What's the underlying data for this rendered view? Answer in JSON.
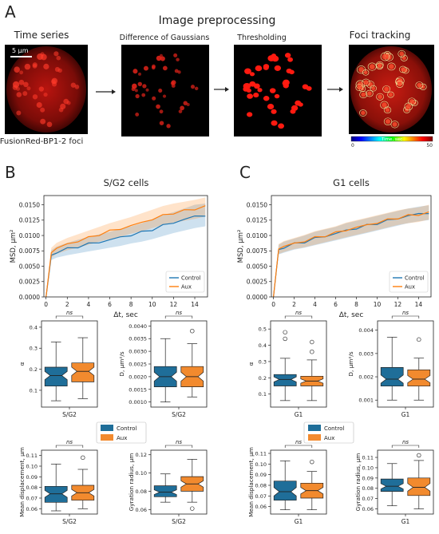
{
  "panel_labels": {
    "a": "A",
    "b": "B",
    "c": "C"
  },
  "preprocessing": {
    "title": "Image preprocessing",
    "steps": [
      "Time series",
      "Difference of Gaussians",
      "Thresholding",
      "Foci tracking"
    ],
    "scale_bar": "5 μm",
    "caption": "FusionRed-BP1-2 foci",
    "colorbar": {
      "label": "Time, sec",
      "min": "0",
      "max": "50"
    }
  },
  "colors": {
    "control": "#1f77b4",
    "aux": "#ff7f0e",
    "box_control": "#1f6e99",
    "box_aux": "#f28a2e",
    "img_red": "#e0201a"
  },
  "legend": {
    "control": "Control",
    "aux": "Aux"
  },
  "ns_label": "ns",
  "chart_data": [
    {
      "id": "msd_sg2",
      "type": "line",
      "title": "S/G2 cells",
      "xlabel": "Δt, sec",
      "ylabel": "MSD, μm²",
      "xlim": [
        -0.2,
        15.2
      ],
      "ylim": [
        0,
        0.0165
      ],
      "xticks": [
        "0",
        "2",
        "4",
        "6",
        "8",
        "10",
        "12",
        "14"
      ],
      "yticks": [
        "0.0000",
        "0.0025",
        "0.0050",
        "0.0075",
        "0.0100",
        "0.0125",
        "0.0150"
      ],
      "legend_position": "lower-right",
      "x": [
        0,
        0.5,
        1,
        2,
        3,
        4,
        5,
        6,
        7,
        8,
        9,
        10,
        11,
        12,
        13,
        14,
        15
      ],
      "series": [
        {
          "name": "Control",
          "values": [
            0,
            0.0068,
            0.0073,
            0.0078,
            0.0082,
            0.0086,
            0.0089,
            0.0093,
            0.0097,
            0.0101,
            0.0105,
            0.011,
            0.0116,
            0.0121,
            0.0126,
            0.0131,
            0.0133
          ],
          "lower": [
            0,
            0.006,
            0.0064,
            0.0068,
            0.0071,
            0.0074,
            0.0077,
            0.008,
            0.0083,
            0.0087,
            0.009,
            0.0094,
            0.0099,
            0.0104,
            0.0108,
            0.0112,
            0.0115
          ],
          "upper": [
            0,
            0.0076,
            0.0082,
            0.0088,
            0.0093,
            0.0098,
            0.0102,
            0.0106,
            0.0111,
            0.0115,
            0.012,
            0.0126,
            0.0133,
            0.0138,
            0.0144,
            0.015,
            0.0152
          ]
        },
        {
          "name": "Aux",
          "values": [
            0,
            0.0072,
            0.0079,
            0.0086,
            0.0091,
            0.0096,
            0.0102,
            0.0107,
            0.0111,
            0.0116,
            0.0121,
            0.0127,
            0.0132,
            0.0137,
            0.014,
            0.0143,
            0.0148
          ],
          "lower": [
            0,
            0.0064,
            0.007,
            0.0076,
            0.008,
            0.0085,
            0.009,
            0.0094,
            0.0098,
            0.0103,
            0.0107,
            0.0112,
            0.0117,
            0.0121,
            0.0124,
            0.0127,
            0.0131
          ],
          "upper": [
            0,
            0.008,
            0.0088,
            0.0096,
            0.0102,
            0.0108,
            0.0114,
            0.012,
            0.0125,
            0.013,
            0.0136,
            0.0142,
            0.0148,
            0.0152,
            0.0155,
            0.0158,
            0.0162
          ]
        }
      ]
    },
    {
      "id": "msd_g1",
      "type": "line",
      "title": "G1 cells",
      "xlabel": "Δt, sec",
      "ylabel": "MSD, μm²",
      "xlim": [
        -0.2,
        15.2
      ],
      "ylim": [
        0,
        0.0165
      ],
      "xticks": [
        "0",
        "2",
        "4",
        "6",
        "8",
        "10",
        "12",
        "14"
      ],
      "yticks": [
        "0.0000",
        "0.0025",
        "0.0050",
        "0.0075",
        "0.0100",
        "0.0125",
        "0.0150"
      ],
      "legend_position": "lower-right",
      "x": [
        0,
        0.5,
        1,
        2,
        3,
        4,
        5,
        6,
        7,
        8,
        9,
        10,
        11,
        12,
        13,
        14,
        15
      ],
      "series": [
        {
          "name": "Control",
          "values": [
            0,
            0.0077,
            0.0081,
            0.0086,
            0.009,
            0.0095,
            0.0099,
            0.0103,
            0.0108,
            0.0112,
            0.0116,
            0.012,
            0.0124,
            0.0128,
            0.0132,
            0.0135,
            0.0137
          ],
          "lower": [
            0,
            0.0069,
            0.0072,
            0.0077,
            0.008,
            0.0084,
            0.0088,
            0.0092,
            0.0096,
            0.01,
            0.0104,
            0.0108,
            0.0112,
            0.0116,
            0.012,
            0.0123,
            0.0125
          ],
          "upper": [
            0,
            0.0085,
            0.009,
            0.0095,
            0.01,
            0.0106,
            0.011,
            0.0114,
            0.012,
            0.0124,
            0.0128,
            0.0132,
            0.0136,
            0.014,
            0.0144,
            0.0147,
            0.0149
          ]
        },
        {
          "name": "Aux",
          "values": [
            0,
            0.0078,
            0.0082,
            0.0087,
            0.0091,
            0.0096,
            0.01,
            0.0104,
            0.0109,
            0.0113,
            0.0117,
            0.0121,
            0.0125,
            0.0129,
            0.0132,
            0.0134,
            0.0138
          ],
          "lower": [
            0,
            0.007,
            0.0073,
            0.0078,
            0.0081,
            0.0085,
            0.0089,
            0.0093,
            0.0097,
            0.0101,
            0.0105,
            0.0109,
            0.0113,
            0.0117,
            0.012,
            0.0122,
            0.0126
          ],
          "upper": [
            0,
            0.0086,
            0.0091,
            0.0096,
            0.0101,
            0.0107,
            0.0111,
            0.0115,
            0.0121,
            0.0125,
            0.0129,
            0.0133,
            0.0137,
            0.0141,
            0.0144,
            0.0146,
            0.015
          ]
        }
      ]
    },
    {
      "id": "box_alpha_sg2",
      "type": "box",
      "ylabel": "α",
      "xlabel": "S/G2",
      "ylim": [
        0.02,
        0.43
      ],
      "yticks": [
        "0.1",
        "0.2",
        "0.3",
        "0.4"
      ],
      "series": [
        {
          "name": "Control",
          "whisker_low": 0.05,
          "q1": 0.12,
          "median": 0.17,
          "q3": 0.21,
          "whisker_high": 0.33,
          "outliers": []
        },
        {
          "name": "Aux",
          "whisker_low": 0.06,
          "q1": 0.14,
          "median": 0.19,
          "q3": 0.23,
          "whisker_high": 0.35,
          "outliers": []
        }
      ]
    },
    {
      "id": "box_d_sg2",
      "type": "box",
      "ylabel": "D, μm²/s",
      "xlabel": "S/G2",
      "ylim": [
        0.0008,
        0.0042
      ],
      "yticks": [
        "0.0010",
        "0.0015",
        "0.0020",
        "0.0025",
        "0.0030",
        "0.0035",
        "0.0040"
      ],
      "series": [
        {
          "name": "Control",
          "whisker_low": 0.001,
          "q1": 0.0016,
          "median": 0.002,
          "q3": 0.0024,
          "whisker_high": 0.0035,
          "outliers": []
        },
        {
          "name": "Aux",
          "whisker_low": 0.0012,
          "q1": 0.0016,
          "median": 0.002,
          "q3": 0.0024,
          "whisker_high": 0.0033,
          "outliers": [
            0.0038
          ]
        }
      ]
    },
    {
      "id": "box_alpha_g1",
      "type": "box",
      "ylabel": "α",
      "xlabel": "G1",
      "ylim": [
        0.02,
        0.55
      ],
      "yticks": [
        "0.1",
        "0.2",
        "0.3",
        "0.4",
        "0.5"
      ],
      "series": [
        {
          "name": "Control",
          "whisker_low": 0.06,
          "q1": 0.15,
          "median": 0.19,
          "q3": 0.22,
          "whisker_high": 0.32,
          "outliers": [
            0.44,
            0.48
          ]
        },
        {
          "name": "Aux",
          "whisker_low": 0.06,
          "q1": 0.15,
          "median": 0.18,
          "q3": 0.21,
          "whisker_high": 0.31,
          "outliers": [
            0.36,
            0.42
          ]
        }
      ]
    },
    {
      "id": "box_d_g1",
      "type": "box",
      "ylabel": "D, μm²/s",
      "xlabel": "G1",
      "ylim": [
        0.0007,
        0.0044
      ],
      "yticks": [
        "0.001",
        "0.002",
        "0.003",
        "0.004"
      ],
      "series": [
        {
          "name": "Control",
          "whisker_low": 0.001,
          "q1": 0.0016,
          "median": 0.0019,
          "q3": 0.0024,
          "whisker_high": 0.0037,
          "outliers": []
        },
        {
          "name": "Aux",
          "whisker_low": 0.001,
          "q1": 0.0016,
          "median": 0.0019,
          "q3": 0.0023,
          "whisker_high": 0.0028,
          "outliers": [
            0.0036
          ]
        }
      ]
    },
    {
      "id": "box_md_sg2",
      "type": "box",
      "ylabel": "Mean displacement, μm",
      "xlabel": "S/G2",
      "ylim": [
        0.055,
        0.115
      ],
      "yticks": [
        "0.06",
        "0.07",
        "0.08",
        "0.09",
        "0.10",
        "0.11"
      ],
      "series": [
        {
          "name": "Control",
          "whisker_low": 0.058,
          "q1": 0.066,
          "median": 0.074,
          "q3": 0.081,
          "whisker_high": 0.102,
          "outliers": []
        },
        {
          "name": "Aux",
          "whisker_low": 0.06,
          "q1": 0.068,
          "median": 0.075,
          "q3": 0.082,
          "whisker_high": 0.097,
          "outliers": [
            0.108
          ]
        }
      ]
    },
    {
      "id": "box_gr_sg2",
      "type": "box",
      "ylabel": "Gyration radius, μm",
      "xlabel": "S/G2",
      "ylim": [
        0.055,
        0.125
      ],
      "yticks": [
        "0.06",
        "0.08",
        "0.10",
        "0.12"
      ],
      "series": [
        {
          "name": "Control",
          "whisker_low": 0.068,
          "q1": 0.074,
          "median": 0.079,
          "q3": 0.086,
          "whisker_high": 0.099,
          "outliers": []
        },
        {
          "name": "Aux",
          "whisker_low": 0.068,
          "q1": 0.08,
          "median": 0.088,
          "q3": 0.096,
          "whisker_high": 0.115,
          "outliers": [
            0.061
          ]
        }
      ]
    },
    {
      "id": "box_md_g1",
      "type": "box",
      "ylabel": "Mean displacement, μm",
      "xlabel": "G1",
      "ylim": [
        0.053,
        0.113
      ],
      "yticks": [
        "0.06",
        "0.07",
        "0.08",
        "0.09",
        "0.10",
        "0.11"
      ],
      "series": [
        {
          "name": "Control",
          "whisker_low": 0.057,
          "q1": 0.066,
          "median": 0.074,
          "q3": 0.084,
          "whisker_high": 0.103,
          "outliers": []
        },
        {
          "name": "Aux",
          "whisker_low": 0.057,
          "q1": 0.068,
          "median": 0.075,
          "q3": 0.082,
          "whisker_high": 0.093,
          "outliers": [
            0.102
          ]
        }
      ]
    },
    {
      "id": "box_gr_g1",
      "type": "box",
      "ylabel": "Gyration radius, μm",
      "xlabel": "G1",
      "ylim": [
        0.055,
        0.117
      ],
      "yticks": [
        "0.06",
        "0.07",
        "0.08",
        "0.09",
        "0.10",
        "0.11"
      ],
      "series": [
        {
          "name": "Control",
          "whisker_low": 0.063,
          "q1": 0.077,
          "median": 0.082,
          "q3": 0.089,
          "whisker_high": 0.104,
          "outliers": []
        },
        {
          "name": "Aux",
          "whisker_low": 0.06,
          "q1": 0.073,
          "median": 0.081,
          "q3": 0.09,
          "whisker_high": 0.107,
          "outliers": [
            0.112
          ]
        }
      ]
    }
  ]
}
